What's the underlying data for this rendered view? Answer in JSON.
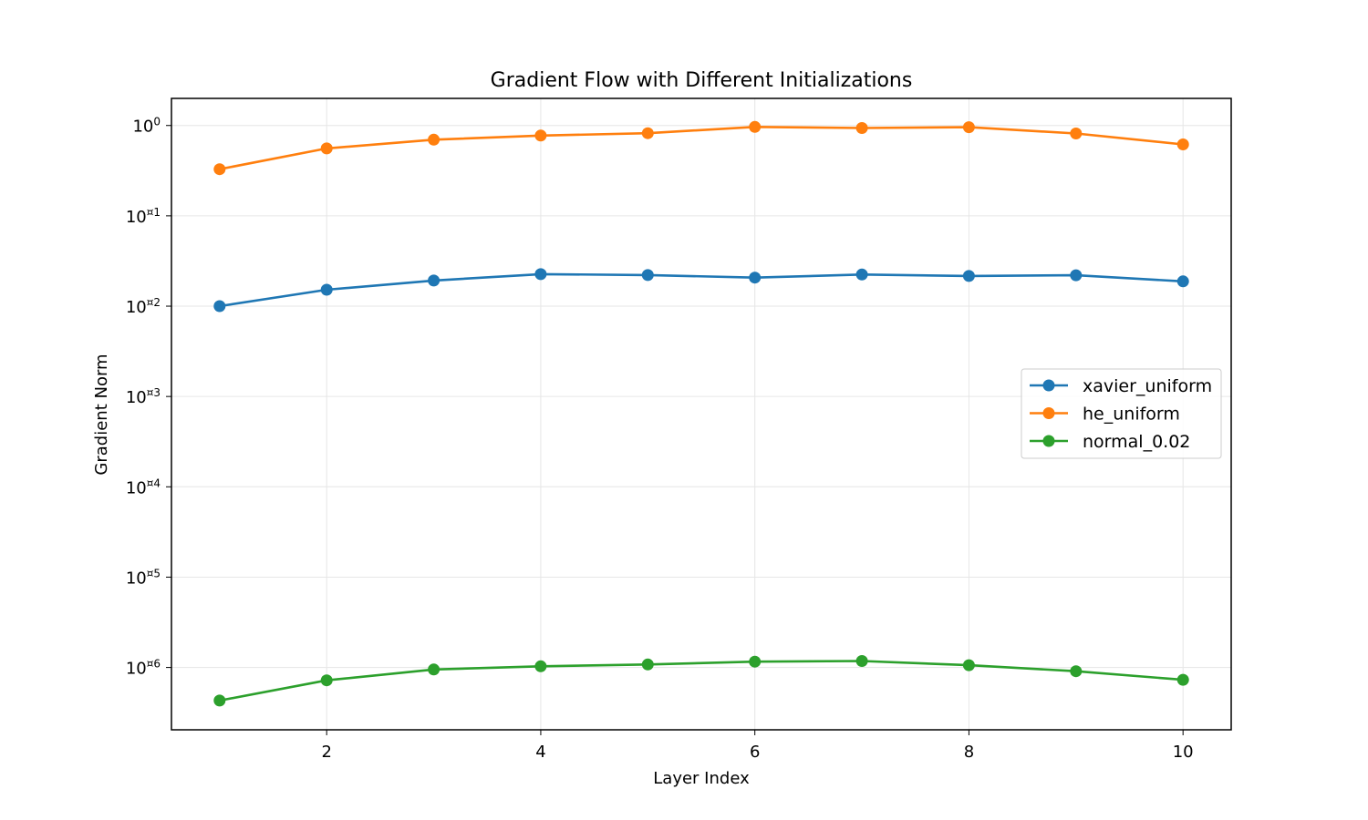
{
  "chart_data": {
    "type": "line",
    "title": "Gradient Flow with Different Initializations",
    "xlabel": "Layer Index",
    "ylabel": "Gradient Norm",
    "x": [
      1,
      2,
      3,
      4,
      5,
      6,
      7,
      8,
      9,
      10
    ],
    "xlim": [
      0.55,
      10.45
    ],
    "xticks": [
      2,
      4,
      6,
      8,
      10
    ],
    "yscale": "log",
    "ylim_log10": [
      -6.69,
      0.3
    ],
    "yticks": [
      {
        "base": "10",
        "exp": "0",
        "value": 0
      },
      {
        "base": "10",
        "exp": "¤1",
        "value": -1
      },
      {
        "base": "10",
        "exp": "¤2",
        "value": -2
      },
      {
        "base": "10",
        "exp": "¤3",
        "value": -3
      },
      {
        "base": "10",
        "exp": "¤4",
        "value": -4
      },
      {
        "base": "10",
        "exp": "¤5",
        "value": -5
      },
      {
        "base": "10",
        "exp": "¤6",
        "value": -6
      }
    ],
    "grid": true,
    "legend_position": "center-right",
    "series": [
      {
        "name": "xavier_uniform",
        "color": "#1f77b4",
        "values": [
          0.01,
          0.0152,
          0.0192,
          0.0226,
          0.0221,
          0.0207,
          0.0224,
          0.0216,
          0.022,
          0.0188
        ]
      },
      {
        "name": "he_uniform",
        "color": "#ff7f0e",
        "values": [
          0.328,
          0.558,
          0.697,
          0.774,
          0.822,
          0.964,
          0.937,
          0.957,
          0.816,
          0.618
        ]
      },
      {
        "name": "normal_0.02",
        "color": "#2ca02c",
        "values": [
          4.3e-07,
          7.2e-07,
          9.5e-07,
          1.03e-06,
          1.08e-06,
          1.16e-06,
          1.18e-06,
          1.06e-06,
          9.1e-07,
          7.3e-07
        ]
      }
    ]
  }
}
